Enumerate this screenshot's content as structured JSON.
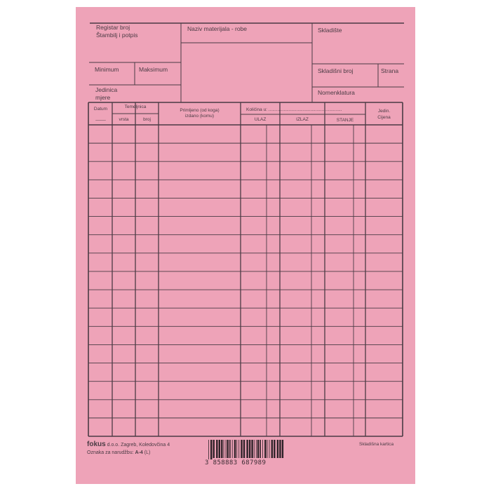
{
  "paper_color": "#eea3b8",
  "line_color": "#4a3b44",
  "header": {
    "registar_broj": "Registar broj",
    "stambilj_potpis": "Štambilj i potpis",
    "naziv": "Naziv materijala - robe",
    "skladiste": "Skladište",
    "minimum": "Minimum",
    "maksimum": "Maksimum",
    "skladisni_broj": "Skladišni broj",
    "strana": "Strana",
    "jedinica": "Jedinica",
    "mjere": "mjere",
    "nomenklatura": "Nomenklatura"
  },
  "table": {
    "datum": "Datum",
    "datum_blank": "____",
    "temeljnica": "Temeljnica",
    "vrsta": "vrsta",
    "broj": "broj",
    "primljeno": "Primljeno (od koga)",
    "izdano": "izdano (komu)",
    "kolicina": "Količina u: ..........................................................",
    "ulaz": "ULAZ",
    "izlaz": "IZLAZ",
    "stanje": "STANJE",
    "jedin": "Jedin.",
    "cijena": "Cijena",
    "row_count": 17
  },
  "footer": {
    "brand": "fokus",
    "company": "d.o.o.  Zagreb, Koledovčina 4",
    "order_label": "Oznaka za narudžbu:",
    "order_code": "A-4",
    "order_suffix": "(L)",
    "form_name": "Skladišna kartica",
    "barcode_digits": "3 858883 687989"
  }
}
